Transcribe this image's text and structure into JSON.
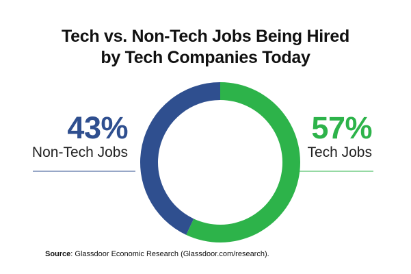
{
  "chart_data": {
    "type": "pie",
    "title_line1": "Tech vs. Non-Tech Jobs Being Hired",
    "title_line2": "by Tech Companies Today",
    "slices": [
      {
        "label": "Non-Tech Jobs",
        "value": 43,
        "value_label": "43%",
        "color": "#2f4f8f"
      },
      {
        "label": "Tech Jobs",
        "value": 57,
        "value_label": "57%",
        "color": "#2db34a"
      }
    ]
  },
  "source": {
    "label": "Source",
    "text": ": Glassdoor Economic Research (Glassdoor.com/research)."
  },
  "colors": {
    "non_tech": "#2f4f8f",
    "tech": "#2db34a",
    "divider": "#2f4f8f",
    "divider_right": "#2db34a"
  }
}
